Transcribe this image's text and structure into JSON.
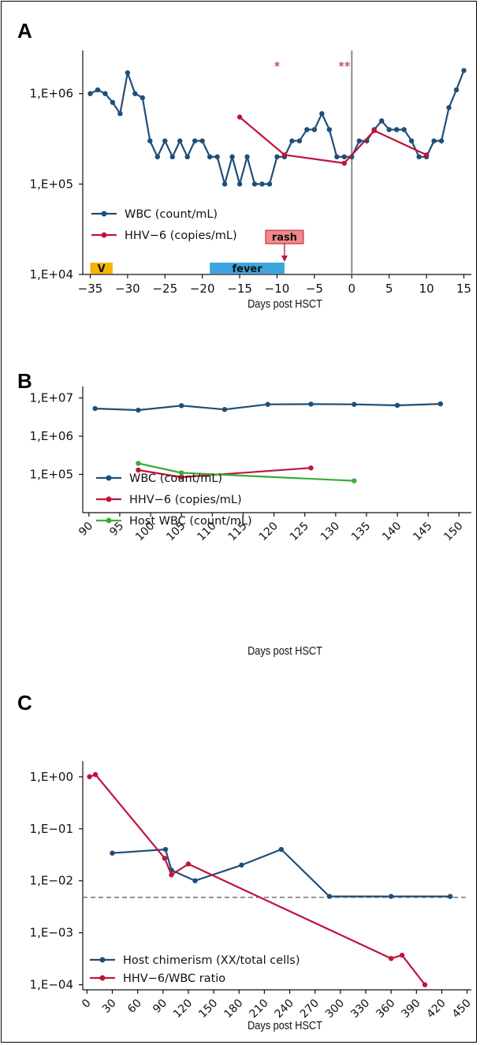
{
  "panels": {
    "a": {
      "letter": "A"
    },
    "b": {
      "letter": "B"
    },
    "c": {
      "letter": "C"
    }
  },
  "chart_data": [
    {
      "id": "a",
      "type": "line",
      "xlabel": "Days post HSCT",
      "ylabel": "",
      "yscale": "log",
      "xlim": [
        -36,
        16
      ],
      "ylim": [
        10000,
        3000000
      ],
      "xticks": [
        -35,
        -30,
        -25,
        -20,
        -15,
        -10,
        -5,
        0,
        5,
        10,
        15
      ],
      "xtick_labels": [
        "−35",
        "−30",
        "−25",
        "−20",
        "−15",
        "−10",
        "−5",
        "0",
        "5",
        "10",
        "15"
      ],
      "yticks": [
        10000,
        100000,
        1000000
      ],
      "ytick_labels": [
        "1,E+04",
        "1,E+05",
        "1,E+06"
      ],
      "vline_x": 0,
      "series": [
        {
          "name": "WBC (count/mL)",
          "color": "#1f4e79",
          "x": [
            -35,
            -34,
            -33,
            -32,
            -31,
            -30,
            -29,
            -28,
            -27,
            -26,
            -25,
            -24,
            -23,
            -22,
            -21,
            -20,
            -19,
            -18,
            -17,
            -16,
            -15,
            -14,
            -13,
            -12,
            -11,
            -10,
            -9,
            -8,
            -7,
            -6,
            -5,
            -4,
            -3,
            -2,
            -1,
            0,
            1,
            2,
            3,
            4,
            5,
            6,
            7,
            8,
            9,
            10,
            11,
            12,
            13,
            14,
            15
          ],
          "y": [
            1000000,
            1100000,
            1000000,
            800000,
            600000,
            1700000,
            1000000,
            900000,
            300000,
            200000,
            300000,
            200000,
            300000,
            200000,
            300000,
            300000,
            200000,
            200000,
            100000,
            200000,
            100000,
            200000,
            100000,
            100000,
            100000,
            200000,
            200000,
            300000,
            300000,
            400000,
            400000,
            600000,
            400000,
            200000,
            200000,
            200000,
            300000,
            300000,
            400000,
            500000,
            400000,
            400000,
            400000,
            300000,
            200000,
            200000,
            300000,
            300000,
            700000,
            1100000,
            1800000
          ]
        },
        {
          "name": "HHV−6 (copies/mL)",
          "color": "#c0143c",
          "x": [
            -15,
            -9,
            -1,
            3,
            10
          ],
          "y": [
            550000,
            210000,
            170000,
            390000,
            210000
          ]
        }
      ],
      "annotations": {
        "star1": "*",
        "star2": "**",
        "v_label": "V",
        "fever_label": "fever",
        "rash_label": "rash",
        "star1_pos": [
          -10,
          2300000
        ],
        "star2_pos": [
          -1,
          2300000
        ],
        "v_span": [
          -35,
          -32
        ],
        "fever_span": [
          -19,
          -9
        ],
        "rash_x": -9,
        "v_color": "#f5b400",
        "fever_color": "#3aa6dd",
        "rash_color": "#f08a8a"
      }
    },
    {
      "id": "b",
      "type": "line",
      "xlabel": "Days post HSCT",
      "ylabel": "",
      "yscale": "log",
      "xlim": [
        89,
        152
      ],
      "ylim": [
        10000,
        20000000
      ],
      "xticks": [
        90,
        95,
        100,
        105,
        110,
        115,
        120,
        125,
        130,
        135,
        140,
        145,
        150
      ],
      "xtick_labels": [
        "90",
        "95",
        "100",
        "105",
        "110",
        "115",
        "120",
        "125",
        "130",
        "135",
        "140",
        "145",
        "150"
      ],
      "yticks": [
        100000,
        1000000,
        10000000
      ],
      "ytick_labels": [
        "1,E+05",
        "1,E+06",
        "1,E+07"
      ],
      "series": [
        {
          "name": "WBC (count/mL)",
          "color": "#1f4e79",
          "x": [
            91,
            98,
            105,
            112,
            119,
            126,
            133,
            140,
            147
          ],
          "y": [
            5300000,
            4800000,
            6300000,
            5000000,
            6800000,
            6900000,
            6800000,
            6400000,
            7000000
          ]
        },
        {
          "name": "HHV−6 (copies/mL)",
          "color": "#c0143c",
          "x": [
            98,
            105,
            126
          ],
          "y": [
            130000,
            85000,
            148000
          ]
        },
        {
          "name": "Host WBC (count/mL)",
          "color": "#3aac3a",
          "x": [
            98,
            105,
            133
          ],
          "y": [
            195000,
            110000,
            68000
          ]
        }
      ]
    },
    {
      "id": "c",
      "type": "line",
      "xlabel": "Days post HSCT",
      "ylabel": "",
      "yscale": "log",
      "xlim": [
        -5,
        455
      ],
      "ylim": [
        8e-05,
        2
      ],
      "xticks": [
        0,
        30,
        60,
        90,
        120,
        150,
        180,
        210,
        240,
        270,
        300,
        330,
        360,
        390,
        420,
        450
      ],
      "xtick_labels": [
        "0",
        "30",
        "60",
        "90",
        "120",
        "150",
        "180",
        "210",
        "240",
        "270",
        "300",
        "330",
        "360",
        "390",
        "420",
        "450"
      ],
      "yticks": [
        0.0001,
        0.001,
        0.01,
        0.1,
        1
      ],
      "ytick_labels": [
        "1,E−04",
        "1,E−03",
        "1,E−02",
        "1,E−01",
        "1,E+00"
      ],
      "hline_y": 0.0048,
      "series": [
        {
          "name": "Host chimerism (XX/total cells)",
          "color": "#1f4e79",
          "x": [
            30,
            93,
            100,
            128,
            183,
            230,
            287,
            360,
            430
          ],
          "y": [
            0.034,
            0.04,
            0.016,
            0.01,
            0.02,
            0.04,
            0.005,
            0.005,
            0.005
          ]
        },
        {
          "name": "HHV−6/WBC ratio",
          "color": "#c0143c",
          "x": [
            3,
            10,
            92,
            100,
            120,
            360,
            373,
            400
          ],
          "y": [
            1.0,
            1.1,
            0.027,
            0.013,
            0.021,
            0.00032,
            0.00037,
            0.0001
          ]
        }
      ]
    }
  ]
}
